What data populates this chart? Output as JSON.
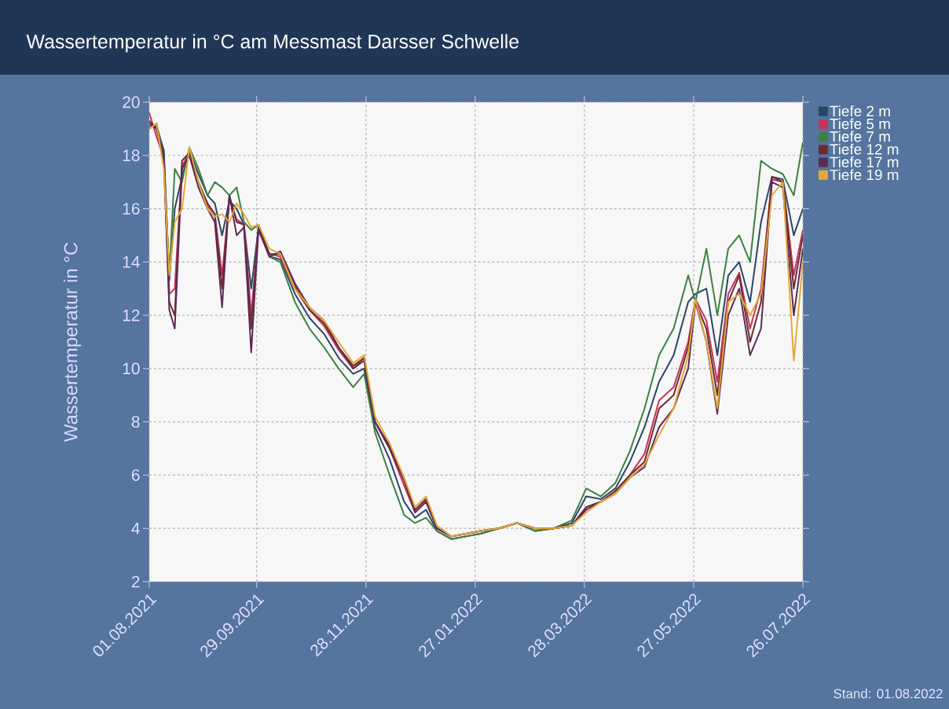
{
  "chart_data": {
    "type": "line",
    "title": "Wassertemperatur in °C am Messmast Darsser Schwelle",
    "ylabel": "Wassertemperatur in °C",
    "annotations": [
      "Stand: 01.08.2022"
    ],
    "x": [
      "2021-08-01",
      "2021-08-05",
      "2021-08-09",
      "2021-08-12",
      "2021-08-15",
      "2021-08-19",
      "2021-08-23",
      "2021-08-28",
      "2021-09-02",
      "2021-09-06",
      "2021-09-10",
      "2021-09-14",
      "2021-09-18",
      "2021-09-22",
      "2021-09-26",
      "2021-09-30",
      "2021-10-06",
      "2021-10-12",
      "2021-10-20",
      "2021-10-28",
      "2021-11-05",
      "2021-11-13",
      "2021-11-21",
      "2021-11-27",
      "2021-12-03",
      "2021-12-11",
      "2021-12-19",
      "2021-12-25",
      "2021-12-31",
      "2022-01-06",
      "2022-01-14",
      "2022-01-22",
      "2022-01-30",
      "2022-02-09",
      "2022-02-19",
      "2022-03-01",
      "2022-03-11",
      "2022-03-21",
      "2022-03-29",
      "2022-04-06",
      "2022-04-14",
      "2022-04-22",
      "2022-04-30",
      "2022-05-08",
      "2022-05-16",
      "2022-05-24",
      "2022-05-28",
      "2022-06-03",
      "2022-06-09",
      "2022-06-15",
      "2022-06-21",
      "2022-06-27",
      "2022-07-03",
      "2022-07-09",
      "2022-07-15",
      "2022-07-21",
      "2022-07-26"
    ],
    "series": [
      {
        "name": "Tiefe 2 m",
        "color": "#2b4566",
        "values": [
          19.1,
          19.1,
          18.2,
          13.3,
          16.0,
          17.2,
          18.2,
          17.3,
          16.5,
          16.2,
          15.0,
          16.3,
          16.0,
          15.4,
          13.0,
          15.3,
          14.2,
          14.1,
          12.8,
          11.9,
          11.3,
          10.4,
          9.8,
          10.0,
          7.8,
          6.6,
          5.0,
          4.4,
          4.7,
          3.9,
          3.6,
          3.7,
          3.8,
          4.0,
          4.2,
          3.9,
          4.0,
          4.2,
          5.2,
          5.1,
          5.5,
          6.5,
          7.8,
          9.5,
          10.5,
          12.5,
          12.8,
          13.0,
          10.5,
          13.5,
          14.0,
          12.5,
          15.5,
          17.2,
          17.1,
          15.0,
          16.0
        ]
      },
      {
        "name": "Tiefe 5 m",
        "color": "#c8325e",
        "values": [
          19.6,
          18.7,
          17.9,
          12.8,
          13.0,
          17.6,
          18.1,
          17.0,
          16.1,
          15.8,
          13.5,
          16.4,
          15.6,
          15.4,
          12.0,
          15.3,
          14.3,
          14.2,
          13.0,
          12.2,
          11.6,
          10.7,
          10.0,
          10.4,
          8.0,
          7.0,
          5.6,
          4.6,
          5.0,
          4.0,
          3.7,
          3.8,
          3.9,
          4.0,
          4.2,
          4.0,
          4.0,
          4.1,
          4.8,
          5.0,
          5.4,
          6.0,
          6.8,
          8.8,
          9.3,
          11.0,
          12.6,
          11.8,
          9.5,
          12.8,
          13.6,
          11.5,
          13.0,
          17.1,
          17.0,
          13.5,
          15.2
        ]
      },
      {
        "name": "Tiefe 7 m",
        "color": "#3d7f45",
        "values": [
          19.0,
          19.2,
          18.0,
          13.5,
          17.5,
          17.0,
          18.3,
          17.5,
          16.5,
          17.0,
          16.8,
          16.5,
          16.8,
          15.5,
          15.2,
          15.4,
          14.2,
          14.0,
          12.5,
          11.5,
          10.8,
          10.0,
          9.3,
          9.8,
          7.6,
          6.0,
          4.5,
          4.2,
          4.4,
          3.9,
          3.6,
          3.7,
          3.8,
          4.0,
          4.2,
          3.9,
          4.0,
          4.3,
          5.5,
          5.2,
          5.7,
          6.9,
          8.5,
          10.5,
          11.5,
          13.5,
          12.5,
          14.5,
          12.0,
          14.5,
          15.0,
          14.0,
          17.8,
          17.5,
          17.3,
          16.5,
          18.5
        ]
      },
      {
        "name": "Tiefe 12 m",
        "color": "#6b2b30",
        "values": [
          19.3,
          19.0,
          17.8,
          12.5,
          12.0,
          17.8,
          18.1,
          17.0,
          16.2,
          15.8,
          13.0,
          16.5,
          15.5,
          15.4,
          11.5,
          15.3,
          14.3,
          14.3,
          13.1,
          12.2,
          11.7,
          10.8,
          10.1,
          10.4,
          8.0,
          7.1,
          5.8,
          4.7,
          5.1,
          4.0,
          3.7,
          3.8,
          3.9,
          4.0,
          4.2,
          4.0,
          4.0,
          4.1,
          4.8,
          5.0,
          5.4,
          6.0,
          6.5,
          8.5,
          9.0,
          10.8,
          12.5,
          11.5,
          9.0,
          12.5,
          13.5,
          11.0,
          12.5,
          17.2,
          17.0,
          13.0,
          15.0
        ]
      },
      {
        "name": "Tiefe 17 m",
        "color": "#5c2a55",
        "values": [
          19.2,
          19.0,
          18.0,
          12.2,
          11.5,
          17.5,
          18.0,
          16.8,
          16.0,
          15.5,
          12.3,
          16.5,
          15.0,
          15.3,
          10.6,
          15.2,
          14.2,
          14.4,
          13.2,
          12.3,
          11.8,
          10.8,
          10.0,
          10.3,
          8.0,
          7.0,
          5.8,
          4.6,
          5.0,
          4.0,
          3.7,
          3.8,
          3.9,
          4.0,
          4.2,
          4.0,
          4.0,
          4.1,
          4.7,
          5.0,
          5.3,
          5.9,
          6.3,
          7.8,
          8.5,
          10.0,
          12.5,
          11.0,
          8.3,
          12.0,
          13.0,
          10.5,
          11.5,
          17.0,
          16.8,
          12.0,
          14.5
        ]
      },
      {
        "name": "Tiefe 19 m",
        "color": "#e3a935",
        "values": [
          19.0,
          19.2,
          17.5,
          13.5,
          15.5,
          16.0,
          18.3,
          17.0,
          16.0,
          15.7,
          15.8,
          15.5,
          16.2,
          15.8,
          15.3,
          15.4,
          14.5,
          14.3,
          13.0,
          12.3,
          11.8,
          11.0,
          10.2,
          10.5,
          8.2,
          7.2,
          5.9,
          4.8,
          5.2,
          4.1,
          3.7,
          3.8,
          3.9,
          4.0,
          4.2,
          4.0,
          4.0,
          4.1,
          4.6,
          5.0,
          5.3,
          5.9,
          6.4,
          7.5,
          8.5,
          10.5,
          12.6,
          11.0,
          8.5,
          12.5,
          12.8,
          12.0,
          12.8,
          16.5,
          17.0,
          10.3,
          14.0
        ]
      }
    ],
    "xlim": [
      "2021-08-01",
      "2022-07-26"
    ],
    "xticks": [
      {
        "value": "2021-08-01",
        "label": "01.08.2021"
      },
      {
        "value": "2021-09-29",
        "label": "29.09.2021"
      },
      {
        "value": "2021-11-28",
        "label": "28.11.2021"
      },
      {
        "value": "2022-01-27",
        "label": "27.01.2022"
      },
      {
        "value": "2022-03-28",
        "label": "28.03.2022"
      },
      {
        "value": "2022-05-27",
        "label": "27.05.2022"
      },
      {
        "value": "2022-07-26",
        "label": "26.07.2022"
      }
    ],
    "ylim": [
      2,
      20
    ],
    "yticks": [
      2,
      4,
      6,
      8,
      10,
      12,
      14,
      16,
      18,
      20
    ],
    "grid": true,
    "legend": "top right",
    "line_style": "solid"
  }
}
